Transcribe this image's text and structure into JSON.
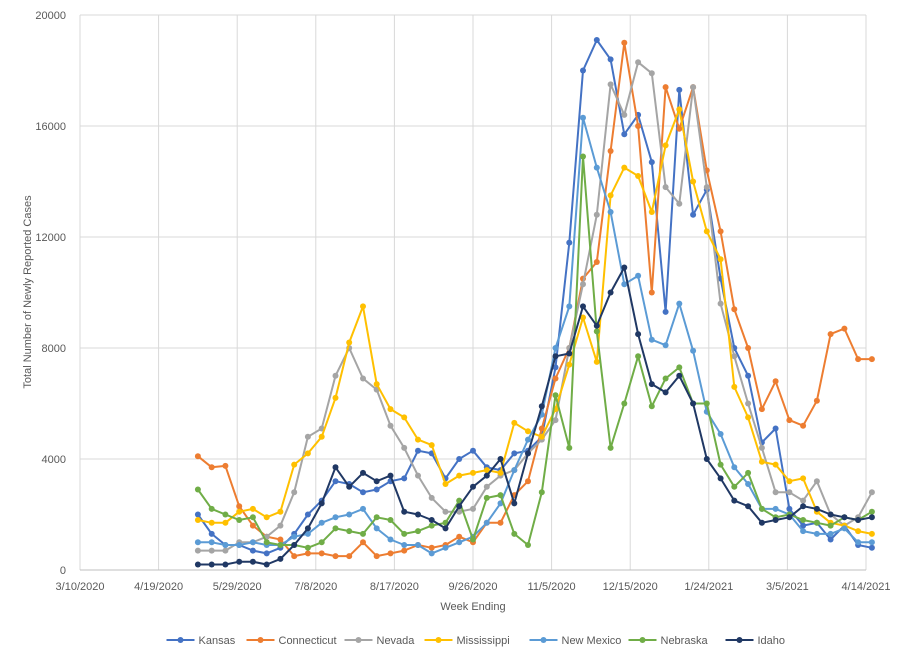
{
  "chart_data": {
    "type": "line",
    "title": "",
    "xlabel": "Week Ending",
    "ylabel": "Total Number of Newly Reported Cases",
    "ylim": [
      0,
      20000
    ],
    "yticks": [
      0,
      4000,
      8000,
      12000,
      16000,
      20000
    ],
    "xlim": [
      "2020-03-10",
      "2021-04-14"
    ],
    "xtick_labels": [
      "3/10/2020",
      "4/19/2020",
      "5/29/2020",
      "7/8/2020",
      "8/17/2020",
      "9/26/2020",
      "11/5/2020",
      "12/15/2020",
      "1/24/2021",
      "3/5/2021",
      "4/14/2021"
    ],
    "grid": true,
    "legend_position": "bottom",
    "x": [
      "2020-05-09",
      "2020-05-16",
      "2020-05-23",
      "2020-05-30",
      "2020-06-06",
      "2020-06-13",
      "2020-06-20",
      "2020-06-27",
      "2020-07-04",
      "2020-07-11",
      "2020-07-18",
      "2020-07-25",
      "2020-08-01",
      "2020-08-08",
      "2020-08-15",
      "2020-08-22",
      "2020-08-29",
      "2020-09-05",
      "2020-09-12",
      "2020-09-19",
      "2020-09-26",
      "2020-10-03",
      "2020-10-10",
      "2020-10-17",
      "2020-10-24",
      "2020-10-31",
      "2020-11-07",
      "2020-11-14",
      "2020-11-21",
      "2020-11-28",
      "2020-12-05",
      "2020-12-12",
      "2020-12-19",
      "2020-12-26",
      "2021-01-02",
      "2021-01-09",
      "2021-01-16",
      "2021-01-23",
      "2021-01-30",
      "2021-02-06",
      "2021-02-13",
      "2021-02-20",
      "2021-02-27",
      "2021-03-06",
      "2021-03-13",
      "2021-03-20",
      "2021-03-27",
      "2021-04-03",
      "2021-04-10",
      "2021-04-17"
    ],
    "series": [
      {
        "name": "Kansas",
        "color": "#4472c4",
        "values": [
          2000,
          1300,
          900,
          900,
          700,
          600,
          800,
          1300,
          2000,
          2500,
          3200,
          3100,
          2800,
          2900,
          3200,
          3300,
          4300,
          4200,
          3300,
          4000,
          4300,
          3700,
          3600,
          4200,
          4300,
          4800,
          7300,
          11800,
          18000,
          19100,
          18400,
          15700,
          16400,
          14700,
          9300,
          17300,
          12800,
          13700,
          10500,
          8000,
          7000,
          4600,
          5100,
          2200,
          1600,
          1700,
          1100,
          1600,
          900,
          800
        ]
      },
      {
        "name": "Connecticut",
        "color": "#ed7d31",
        "values": [
          4100,
          3700,
          3750,
          2300,
          1600,
          1200,
          1100,
          500,
          600,
          600,
          500,
          500,
          1000,
          500,
          600,
          700,
          900,
          800,
          900,
          1200,
          1000,
          1700,
          1700,
          2700,
          3200,
          5100,
          6900,
          8000,
          10500,
          11100,
          15100,
          19000,
          16000,
          10000,
          17400,
          15900,
          17400,
          14400,
          12200,
          9400,
          8000,
          5800,
          6800,
          5400,
          5200,
          6100,
          8500,
          8700,
          7600,
          7600
        ]
      },
      {
        "name": "Nevada",
        "color": "#a5a5a5",
        "values": [
          700,
          700,
          700,
          1000,
          1000,
          1200,
          1600,
          2800,
          4800,
          5100,
          7000,
          8000,
          6900,
          6500,
          5200,
          4400,
          3400,
          2600,
          2100,
          2100,
          2200,
          3000,
          3400,
          3600,
          4200,
          4700,
          5400,
          8000,
          10300,
          12800,
          17500,
          16400,
          18300,
          17900,
          13800,
          13200,
          17400,
          13800,
          9600,
          7700,
          6000,
          4400,
          2800,
          2800,
          2500,
          3200,
          2000,
          1600,
          1900,
          2800
        ]
      },
      {
        "name": "Mississippi",
        "color": "#ffc000",
        "values": [
          1800,
          1700,
          1700,
          2100,
          2200,
          1900,
          2100,
          3800,
          4200,
          4800,
          6200,
          8200,
          9500,
          6700,
          5800,
          5500,
          4700,
          4500,
          3100,
          3400,
          3500,
          3600,
          3500,
          5300,
          5000,
          4800,
          5800,
          7400,
          9100,
          7500,
          13500,
          14500,
          14200,
          12900,
          15300,
          16600,
          14000,
          12200,
          11200,
          6600,
          5500,
          3900,
          3800,
          3200,
          3300,
          2100,
          1700,
          1600,
          1400,
          1300
        ]
      },
      {
        "name": "New Mexico",
        "color": "#5b9bd5",
        "values": [
          1000,
          1000,
          900,
          900,
          1000,
          900,
          900,
          1200,
          1300,
          1700,
          1900,
          2000,
          2200,
          1500,
          1100,
          900,
          900,
          600,
          800,
          1000,
          1200,
          1700,
          2400,
          3600,
          4700,
          5600,
          8000,
          9500,
          16300,
          14500,
          12900,
          10300,
          10600,
          8300,
          8100,
          9600,
          7900,
          5700,
          4900,
          3700,
          3100,
          2200,
          2200,
          2000,
          1400,
          1300,
          1300,
          1500,
          1000,
          1000
        ]
      },
      {
        "name": "Nebraska",
        "color": "#70ad47",
        "values": [
          2900,
          2200,
          2000,
          1800,
          1900,
          1000,
          900,
          900,
          800,
          1000,
          1500,
          1400,
          1300,
          1900,
          1800,
          1300,
          1400,
          1600,
          1700,
          2500,
          1100,
          2600,
          2700,
          1300,
          900,
          2800,
          6300,
          4400,
          14900,
          8600,
          4400,
          6000,
          7700,
          5900,
          6900,
          7300,
          6000,
          6000,
          3800,
          3000,
          3500,
          2200,
          1900,
          2000,
          1800,
          1700,
          1600,
          1900,
          1800,
          2100
        ]
      },
      {
        "name": "Idaho",
        "color": "#203864",
        "values": [
          200,
          200,
          200,
          300,
          300,
          200,
          400,
          900,
          1500,
          2400,
          3700,
          3000,
          3500,
          3200,
          3400,
          2100,
          2000,
          1800,
          1500,
          2300,
          3000,
          3400,
          4000,
          2400,
          4200,
          5900,
          7700,
          7800,
          9500,
          8800,
          10000,
          10900,
          8500,
          6700,
          6400,
          7000,
          6000,
          4000,
          3300,
          2500,
          2300,
          1700,
          1800,
          1900,
          2300,
          2200,
          2000,
          1900,
          1800,
          1900
        ]
      }
    ]
  }
}
